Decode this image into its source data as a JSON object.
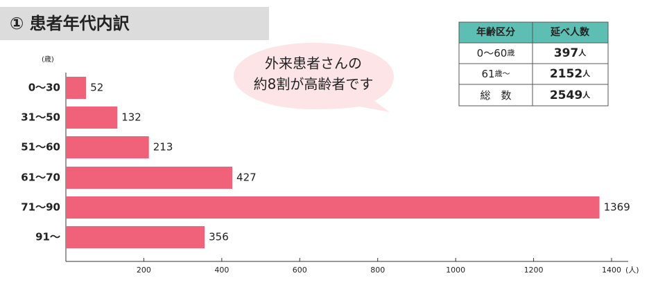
{
  "chart_data": {
    "type": "barh",
    "title": "① 患者年代内訳",
    "y_unit": "(歳)",
    "x_unit": "(人)",
    "categories": [
      "0～30",
      "31～50",
      "51～60",
      "61～70",
      "71～90",
      "91～"
    ],
    "values": [
      52,
      132,
      213,
      427,
      1369,
      356
    ],
    "color": "#f0627a",
    "xlim": [
      0,
      1400
    ],
    "xticks": [
      200,
      400,
      600,
      800,
      1000,
      1200,
      1400
    ]
  },
  "callout": {
    "lines": [
      "外来患者さんの",
      "約8割が高齢者です"
    ]
  },
  "table": {
    "header": [
      "年齢区分",
      "延べ人数"
    ],
    "rows": [
      [
        [
          "0～60",
          "歳"
        ],
        [
          "397",
          "人"
        ]
      ],
      [
        [
          "61",
          "歳～"
        ],
        [
          "2152",
          "人"
        ]
      ],
      [
        [
          "総　数"
        ],
        [
          "2549",
          "人"
        ]
      ]
    ]
  }
}
